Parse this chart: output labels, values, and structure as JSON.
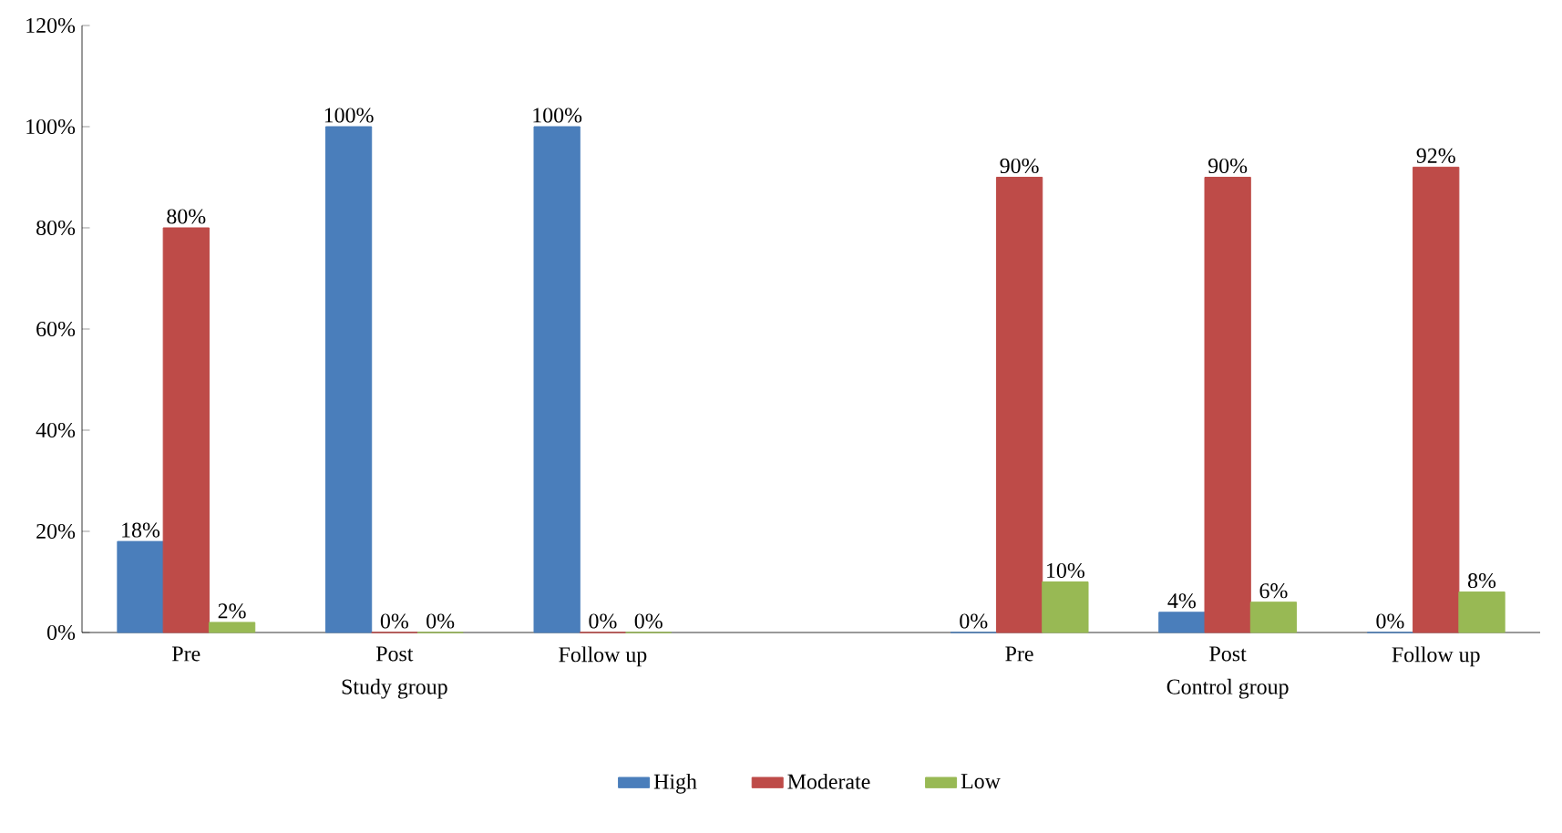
{
  "chart_data": {
    "type": "bar",
    "categories": [
      "Pre",
      "Post",
      "Follow up",
      null,
      "Pre",
      "Post",
      "Follow up"
    ],
    "series": [
      {
        "name": "High",
        "color": "#4a7ebb",
        "values": [
          18,
          100,
          100,
          null,
          0,
          4,
          0
        ],
        "value_labels": [
          "18%",
          "100%",
          "100%",
          null,
          "0%",
          "4%",
          "0%"
        ]
      },
      {
        "name": "Moderate",
        "color": "#be4b48",
        "values": [
          80,
          0,
          0,
          null,
          90,
          90,
          92
        ],
        "value_labels": [
          "80%",
          "0%",
          "0%",
          null,
          "90%",
          "90%",
          "92%"
        ]
      },
      {
        "name": "Low",
        "color": "#98b954",
        "values": [
          2,
          0,
          0,
          null,
          10,
          6,
          8
        ],
        "value_labels": [
          "2%",
          "0%",
          "0%",
          null,
          "10%",
          "6%",
          "8%"
        ]
      }
    ],
    "annotations": [
      "Study group",
      "Control group"
    ],
    "ylim": [
      0,
      120
    ],
    "yticks": [
      {
        "value": 0,
        "label": "0%"
      },
      {
        "value": 20,
        "label": "20%"
      },
      {
        "value": 40,
        "label": "40%"
      },
      {
        "value": 60,
        "label": "60%"
      },
      {
        "value": 80,
        "label": "80%"
      },
      {
        "value": 100,
        "label": "100%"
      },
      {
        "value": 120,
        "label": "120%"
      }
    ],
    "grid": false,
    "legend": "bottom"
  }
}
